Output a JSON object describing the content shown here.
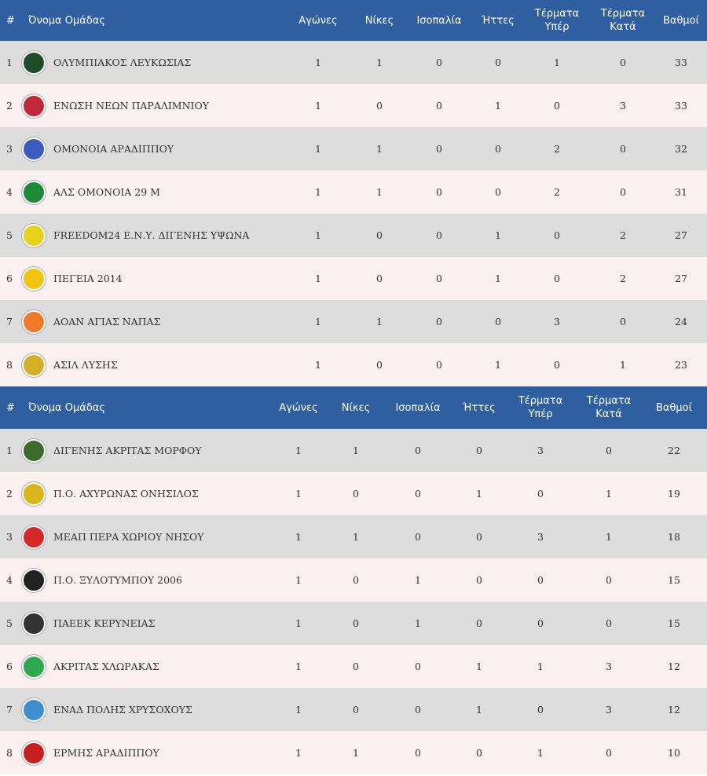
{
  "headers": {
    "pos": "#",
    "team": "Όνομα Ομάδας",
    "played": "Αγώνες",
    "wins": "Νίκες",
    "draws": "Ισοπαλία",
    "losses": "Ήττες",
    "gf_line1": "Τέρματα",
    "gf_line2": "Υπέρ",
    "ga_line1": "Τέρματα",
    "ga_line2": "Κατά",
    "points": "Βαθμοί"
  },
  "table1": [
    {
      "pos": "1",
      "team": "ΟΛΥΜΠΙΑΚΟΣ ΛΕΥΚΩΣΙΑΣ",
      "played": "1",
      "wins": "1",
      "draws": "0",
      "losses": "0",
      "gf": "1",
      "ga": "0",
      "points": "33",
      "logo_icon": "olympiakos-crest-icon",
      "logo_color": "#1f4d2a"
    },
    {
      "pos": "2",
      "team": "ΕΝΩΣΗ ΝΕΩΝ ΠΑΡΑΛΙΜΝΙΟΥ",
      "played": "1",
      "wins": "0",
      "draws": "0",
      "losses": "1",
      "gf": "0",
      "ga": "3",
      "points": "33",
      "logo_icon": "enp-crest-icon",
      "logo_color": "#c0293b"
    },
    {
      "pos": "3",
      "team": "ΟΜΟΝΟΙΑ ΑΡΑΔΙΠΠΟΥ",
      "played": "1",
      "wins": "1",
      "draws": "0",
      "losses": "0",
      "gf": "2",
      "ga": "0",
      "points": "32",
      "logo_icon": "omonoia-aradippou-crest-icon",
      "logo_color": "#3a5cc0"
    },
    {
      "pos": "4",
      "team": "ΑΛΣ ΟΜΟΝΟΙΑ 29 Μ",
      "played": "1",
      "wins": "1",
      "draws": "0",
      "losses": "0",
      "gf": "2",
      "ga": "0",
      "points": "31",
      "logo_icon": "omonoia-29m-crest-icon",
      "logo_color": "#1e8a3a"
    },
    {
      "pos": "5",
      "team": "FREEDOM24 Ε.Ν.Υ. ΔΙΓΕΝΗΣ ΥΨΩΝΑ",
      "played": "1",
      "wins": "0",
      "draws": "0",
      "losses": "1",
      "gf": "0",
      "ga": "2",
      "points": "27",
      "logo_icon": "digenis-ypsona-crest-icon",
      "logo_color": "#e5d21c"
    },
    {
      "pos": "6",
      "team": "ΠΕΓΕΙΑ 2014",
      "played": "1",
      "wins": "0",
      "draws": "0",
      "losses": "1",
      "gf": "0",
      "ga": "2",
      "points": "27",
      "logo_icon": "pegeia-crest-icon",
      "logo_color": "#f1c40f"
    },
    {
      "pos": "7",
      "team": "ΑΟΑΝ ΑΓΙΑΣ ΝΑΠΑΣ",
      "played": "1",
      "wins": "1",
      "draws": "0",
      "losses": "0",
      "gf": "3",
      "ga": "0",
      "points": "24",
      "logo_icon": "aoan-crest-icon",
      "logo_color": "#f07a2a"
    },
    {
      "pos": "8",
      "team": "ΑΣΙΛ ΛΥΣΗΣ",
      "played": "1",
      "wins": "0",
      "draws": "0",
      "losses": "1",
      "gf": "0",
      "ga": "1",
      "points": "23",
      "logo_icon": "asil-crest-icon",
      "logo_color": "#d4b028"
    }
  ],
  "table2": [
    {
      "pos": "1",
      "team": "ΔΙΓΕΝΗΣ ΑΚΡΙΤΑΣ ΜΟΡΦΟΥ",
      "played": "1",
      "wins": "1",
      "draws": "0",
      "losses": "0",
      "gf": "3",
      "ga": "0",
      "points": "22",
      "logo_icon": "digenis-morfou-crest-icon",
      "logo_color": "#3c6b2a"
    },
    {
      "pos": "2",
      "team": "Π.Ο. ΑΧΥΡΩΝΑΣ ΟΝΗΣΙΛΟΣ",
      "played": "1",
      "wins": "0",
      "draws": "0",
      "losses": "1",
      "gf": "0",
      "ga": "1",
      "points": "19",
      "logo_icon": "achyronas-crest-icon",
      "logo_color": "#d9b51a"
    },
    {
      "pos": "3",
      "team": "ΜΕΑΠ ΠΕΡΑ ΧΩΡΙΟΥ ΝΗΣΟΥ",
      "played": "1",
      "wins": "1",
      "draws": "0",
      "losses": "0",
      "gf": "3",
      "ga": "1",
      "points": "18",
      "logo_icon": "meap-crest-icon",
      "logo_color": "#d62828"
    },
    {
      "pos": "4",
      "team": "Π.Ο. ΞΥΛΟΤΥΜΠΟΥ 2006",
      "played": "1",
      "wins": "0",
      "draws": "1",
      "losses": "0",
      "gf": "0",
      "ga": "0",
      "points": "15",
      "logo_icon": "xylotymbou-crest-icon",
      "logo_color": "#222222"
    },
    {
      "pos": "5",
      "team": "ΠΑΕΕΚ ΚΕΡΥΝΕΙΑΣ",
      "played": "1",
      "wins": "0",
      "draws": "1",
      "losses": "0",
      "gf": "0",
      "ga": "0",
      "points": "15",
      "logo_icon": "paeek-eagle-icon",
      "logo_color": "#333333"
    },
    {
      "pos": "6",
      "team": "ΑΚΡΙΤΑΣ ΧΛΩΡΑΚΑΣ",
      "played": "1",
      "wins": "0",
      "draws": "0",
      "losses": "1",
      "gf": "1",
      "ga": "3",
      "points": "12",
      "logo_icon": "akritas-crest-icon",
      "logo_color": "#2fa84f"
    },
    {
      "pos": "7",
      "team": "ΕΝΑΔ ΠΟΛΗΣ ΧΡΥΣΟΧΟΥΣ",
      "played": "1",
      "wins": "0",
      "draws": "0",
      "losses": "1",
      "gf": "0",
      "ga": "3",
      "points": "12",
      "logo_icon": "enad-crest-icon",
      "logo_color": "#3d8fd1"
    },
    {
      "pos": "8",
      "team": "ΕΡΜΗΣ ΑΡΑΔΙΠΠΟΥ",
      "played": "1",
      "wins": "1",
      "draws": "0",
      "losses": "0",
      "gf": "1",
      "ga": "0",
      "points": "10",
      "logo_icon": "ermis-crest-icon",
      "logo_color": "#c81e1e"
    }
  ],
  "colors": {
    "header_bg": "#2f5fa0",
    "row_odd": "#dddddd",
    "row_even": "#faf0f0"
  }
}
